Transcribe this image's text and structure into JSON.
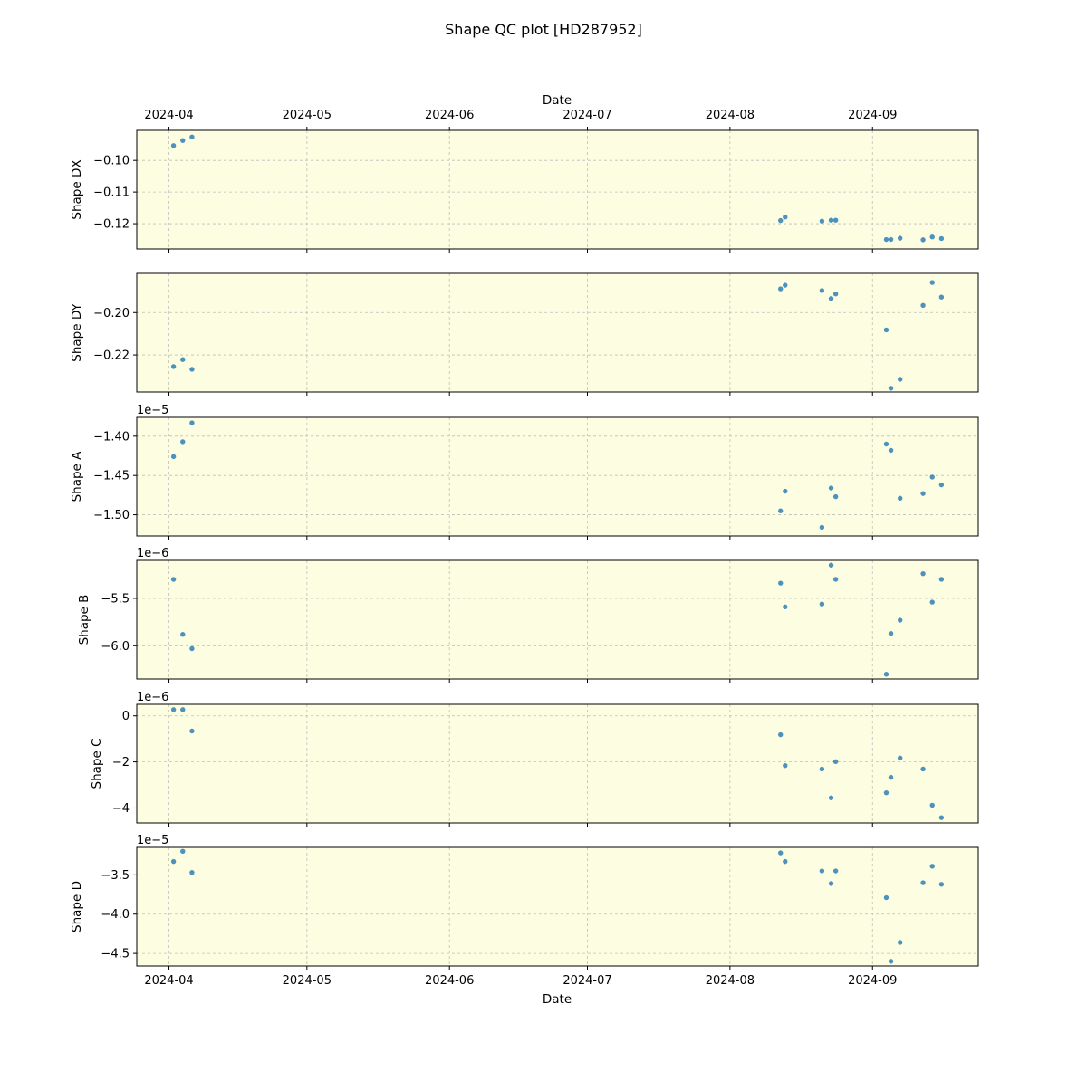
{
  "chart_data": {
    "type": "scatter",
    "title": "Shape QC plot [HD287952]",
    "xlabel": "Date",
    "x_ticks": [
      "2024-04",
      "2024-05",
      "2024-06",
      "2024-07",
      "2024-08",
      "2024-09"
    ],
    "x_range": [
      "2024-03-25",
      "2024-09-24"
    ],
    "grid": true,
    "panel_background": "#fdfde2",
    "point_color": "#1f77b4",
    "grid_color": "#b0b0b0",
    "x": [
      "2024-04-02",
      "2024-04-04",
      "2024-04-06",
      "2024-08-12",
      "2024-08-13",
      "2024-08-21",
      "2024-08-23",
      "2024-08-24",
      "2024-09-04",
      "2024-09-05",
      "2024-09-07",
      "2024-09-12",
      "2024-09-14",
      "2024-09-16"
    ],
    "panels": [
      {
        "ylabel": "Shape DX",
        "offset_text": "",
        "ylim": [
          -0.128,
          -0.0905
        ],
        "yticks": [
          -0.12,
          -0.11,
          -0.1
        ],
        "ytick_labels": [
          "−0.12",
          "−0.11",
          "−0.10"
        ],
        "points": [
          [
            "2024-04-02",
            -0.0953
          ],
          [
            "2024-04-04",
            -0.0937
          ],
          [
            "2024-04-06",
            -0.0926
          ],
          [
            "2024-08-12",
            -0.119
          ],
          [
            "2024-08-13",
            -0.1179
          ],
          [
            "2024-08-21",
            -0.1192
          ],
          [
            "2024-08-23",
            -0.1189
          ],
          [
            "2024-08-24",
            -0.1189
          ],
          [
            "2024-09-04",
            -0.125
          ],
          [
            "2024-09-05",
            -0.125
          ],
          [
            "2024-09-07",
            -0.1246
          ],
          [
            "2024-09-12",
            -0.1251
          ],
          [
            "2024-09-14",
            -0.1242
          ],
          [
            "2024-09-16",
            -0.1247
          ]
        ]
      },
      {
        "ylabel": "Shape DY",
        "offset_text": "",
        "ylim": [
          -0.2375,
          -0.1815
        ],
        "yticks": [
          -0.22,
          -0.2
        ],
        "ytick_labels": [
          "−0.22",
          "−0.20"
        ],
        "points": [
          [
            "2024-04-02",
            -0.2255
          ],
          [
            "2024-04-04",
            -0.2222
          ],
          [
            "2024-04-06",
            -0.2268
          ],
          [
            "2024-08-12",
            -0.1888
          ],
          [
            "2024-08-13",
            -0.1871
          ],
          [
            "2024-08-21",
            -0.1896
          ],
          [
            "2024-08-23",
            -0.1934
          ],
          [
            "2024-08-24",
            -0.1912
          ],
          [
            "2024-09-04",
            -0.2082
          ],
          [
            "2024-09-05",
            -0.2357
          ],
          [
            "2024-09-07",
            -0.2315
          ],
          [
            "2024-09-12",
            -0.1966
          ],
          [
            "2024-09-14",
            -0.1858
          ],
          [
            "2024-09-16",
            -0.1927
          ]
        ]
      },
      {
        "ylabel": "Shape A",
        "offset_text": "1e−5",
        "ylim": [
          -1.527,
          -1.376
        ],
        "yticks": [
          -1.5,
          -1.45,
          -1.4
        ],
        "ytick_labels": [
          "−1.50",
          "−1.45",
          "−1.40"
        ],
        "points": [
          [
            "2024-04-02",
            -1.426
          ],
          [
            "2024-04-04",
            -1.407
          ],
          [
            "2024-04-06",
            -1.383
          ],
          [
            "2024-08-12",
            -1.495
          ],
          [
            "2024-08-13",
            -1.47
          ],
          [
            "2024-08-21",
            -1.516
          ],
          [
            "2024-08-23",
            -1.466
          ],
          [
            "2024-08-24",
            -1.477
          ],
          [
            "2024-09-04",
            -1.41
          ],
          [
            "2024-09-05",
            -1.418
          ],
          [
            "2024-09-07",
            -1.479
          ],
          [
            "2024-09-12",
            -1.473
          ],
          [
            "2024-09-14",
            -1.452
          ],
          [
            "2024-09-16",
            -1.462
          ]
        ]
      },
      {
        "ylabel": "Shape B",
        "offset_text": "1e−6",
        "ylim": [
          -6.35,
          -5.1
        ],
        "yticks": [
          -6.0,
          -5.5
        ],
        "ytick_labels": [
          "−6.0",
          "−5.5"
        ],
        "points": [
          [
            "2024-04-02",
            -5.3
          ],
          [
            "2024-04-04",
            -5.88
          ],
          [
            "2024-04-06",
            -6.03
          ],
          [
            "2024-08-12",
            -5.34
          ],
          [
            "2024-08-13",
            -5.59
          ],
          [
            "2024-08-21",
            -5.56
          ],
          [
            "2024-08-23",
            -5.15
          ],
          [
            "2024-08-24",
            -5.3
          ],
          [
            "2024-09-04",
            -6.3
          ],
          [
            "2024-09-05",
            -5.87
          ],
          [
            "2024-09-07",
            -5.73
          ],
          [
            "2024-09-12",
            -5.24
          ],
          [
            "2024-09-14",
            -5.54
          ],
          [
            "2024-09-16",
            -5.3
          ]
        ]
      },
      {
        "ylabel": "Shape C",
        "offset_text": "1e−6",
        "ylim": [
          -4.65,
          0.5
        ],
        "yticks": [
          -4,
          -2,
          0
        ],
        "ytick_labels": [
          "−4",
          "−2",
          "0"
        ],
        "points": [
          [
            "2024-04-02",
            0.27
          ],
          [
            "2024-04-04",
            0.27
          ],
          [
            "2024-04-06",
            -0.66
          ],
          [
            "2024-08-12",
            -0.82
          ],
          [
            "2024-08-13",
            -2.16
          ],
          [
            "2024-08-21",
            -2.31
          ],
          [
            "2024-08-23",
            -3.56
          ],
          [
            "2024-08-24",
            -1.99
          ],
          [
            "2024-09-04",
            -3.34
          ],
          [
            "2024-09-05",
            -2.67
          ],
          [
            "2024-09-07",
            -1.83
          ],
          [
            "2024-09-12",
            -2.31
          ],
          [
            "2024-09-14",
            -3.88
          ],
          [
            "2024-09-16",
            -4.42
          ]
        ]
      },
      {
        "ylabel": "Shape D",
        "offset_text": "1e−5",
        "ylim": [
          -4.66,
          -3.15
        ],
        "yticks": [
          -4.5,
          -4.0,
          -3.5
        ],
        "ytick_labels": [
          "−4.5",
          "−4.0",
          "−3.5"
        ],
        "points": [
          [
            "2024-04-02",
            -3.33
          ],
          [
            "2024-04-04",
            -3.2
          ],
          [
            "2024-04-06",
            -3.47
          ],
          [
            "2024-08-12",
            -3.22
          ],
          [
            "2024-08-13",
            -3.33
          ],
          [
            "2024-08-21",
            -3.45
          ],
          [
            "2024-08-23",
            -3.61
          ],
          [
            "2024-08-24",
            -3.45
          ],
          [
            "2024-09-04",
            -3.79
          ],
          [
            "2024-09-05",
            -4.6
          ],
          [
            "2024-09-07",
            -4.36
          ],
          [
            "2024-09-12",
            -3.6
          ],
          [
            "2024-09-14",
            -3.39
          ],
          [
            "2024-09-16",
            -3.62
          ]
        ]
      }
    ]
  }
}
